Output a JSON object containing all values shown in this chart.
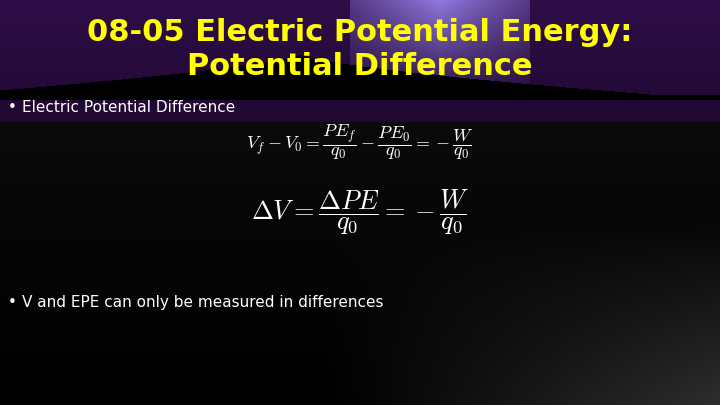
{
  "title_line1": "08-05 Electric Potential Energy:",
  "title_line2": "Potential Difference",
  "title_color": "#FFFF00",
  "title_fontsize": 22,
  "bullet1": "Electric Potential Difference",
  "bullet2": "V and EPE can only be measured in differences",
  "bullet_color": "#FFFFFF",
  "bullet_fontsize": 11,
  "formula1": "$V_f - V_0 = \\dfrac{PE_f}{q_0} - \\dfrac{PE_0}{q_0} = -\\dfrac{W}{q_0}$",
  "formula2": "$\\Delta V = \\dfrac{\\Delta PE}{q_0} = -\\dfrac{W}{q_0}$",
  "formula_color": "#FFFFFF",
  "formula_fontsize1": 13,
  "formula_fontsize2": 19
}
